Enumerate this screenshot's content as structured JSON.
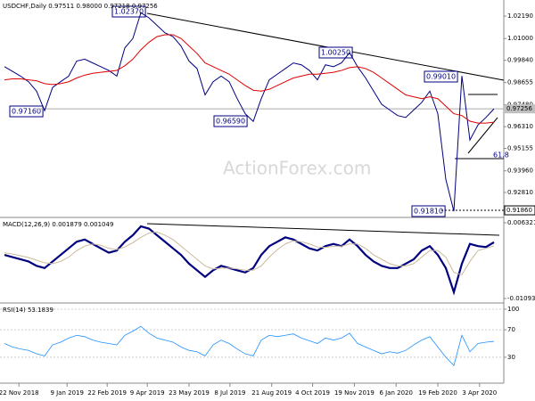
{
  "watermark": "ActionForex.com",
  "chart_data": [
    {
      "type": "line",
      "title": "USDCHF,Daily 0.97511 0.98000 0.97218 0.97256",
      "series": [
        {
          "name": "Close",
          "color": "#000080",
          "width": 1,
          "values": [
            0.995,
            0.9925,
            0.99,
            0.987,
            0.982,
            0.9716,
            0.984,
            0.987,
            0.99,
            0.998,
            0.999,
            0.997,
            0.995,
            0.993,
            0.99,
            1.005,
            1.01,
            1.0237,
            1.021,
            1.017,
            1.013,
            1.011,
            1.006,
            0.998,
            0.994,
            0.98,
            0.987,
            0.99,
            0.987,
            0.978,
            0.97,
            0.9659,
            0.978,
            0.988,
            0.991,
            0.994,
            0.997,
            0.996,
            0.993,
            0.988,
            0.996,
            0.995,
            0.997,
            1.0025,
            0.995,
            0.989,
            0.982,
            0.975,
            0.972,
            0.969,
            0.968,
            0.972,
            0.976,
            0.982,
            0.97,
            0.935,
            0.9181,
            0.9901,
            0.956,
            0.964,
            0.968,
            0.9726
          ]
        },
        {
          "name": "MA",
          "color": "#e00000",
          "width": 1,
          "values": [
            0.988,
            0.9885,
            0.9885,
            0.988,
            0.9875,
            0.986,
            0.9855,
            0.986,
            0.987,
            0.989,
            0.9905,
            0.9915,
            0.992,
            0.9925,
            0.993,
            0.9955,
            0.999,
            1.004,
            1.008,
            1.011,
            1.012,
            1.012,
            1.01,
            1.006,
            1.002,
            0.997,
            0.995,
            0.993,
            0.991,
            0.988,
            0.985,
            0.9825,
            0.982,
            0.983,
            0.985,
            0.987,
            0.989,
            0.99,
            0.991,
            0.991,
            0.9915,
            0.992,
            0.993,
            0.9945,
            0.995,
            0.994,
            0.992,
            0.989,
            0.986,
            0.983,
            0.98,
            0.979,
            0.978,
            0.979,
            0.978,
            0.974,
            0.97,
            0.969,
            0.966,
            0.965,
            0.965,
            0.9655
          ]
        }
      ],
      "ylim": [
        0.9153,
        1.0281
      ],
      "yticks": [
        {
          "value": 1.0219,
          "label": "1.02190"
        },
        {
          "value": 1.01,
          "label": "1.01000"
        },
        {
          "value": 0.9984,
          "label": "0.99840"
        },
        {
          "value": 0.98655,
          "label": "0.98655"
        },
        {
          "value": 0.9748,
          "label": "0.97480"
        },
        {
          "value": 0.9631,
          "label": "0.96310"
        },
        {
          "value": 0.95155,
          "label": "0.95155"
        },
        {
          "value": 0.9396,
          "label": "0.93960"
        },
        {
          "value": 0.9281,
          "label": "0.92810"
        }
      ],
      "last_price": {
        "value": 0.97256,
        "label": "0.97256"
      },
      "level": {
        "value": 0.9186,
        "label": "0.91860"
      },
      "annotations": [
        "1.02370",
        "0.97160",
        "0.96590",
        "1.00250",
        "0.99010",
        "0.91810",
        "61.8"
      ]
    },
    {
      "type": "line",
      "title": "MACD(12,26,9) 0.001879 0.001049",
      "series": [
        {
          "name": "MACD",
          "color": "#000080",
          "width": 2.2,
          "values": [
            -0.001,
            -0.0015,
            -0.002,
            -0.0025,
            -0.0035,
            -0.004,
            -0.0025,
            -0.001,
            0.0005,
            0.002,
            0.0025,
            0.0015,
            0.0005,
            -0.0005,
            0,
            0.002,
            0.0035,
            0.0055,
            0.005,
            0.0035,
            0.002,
            0.0005,
            -0.001,
            -0.003,
            -0.0045,
            -0.006,
            -0.0045,
            -0.0035,
            -0.004,
            -0.0045,
            -0.005,
            -0.004,
            -0.001,
            0.001,
            0.002,
            0.003,
            0.0025,
            0.0015,
            0.0005,
            0,
            0.001,
            0.0015,
            0.001,
            0.0025,
            0.001,
            -0.001,
            -0.0025,
            -0.0035,
            -0.004,
            -0.004,
            -0.003,
            -0.002,
            0,
            0.001,
            -0.001,
            -0.004,
            -0.0095,
            -0.003,
            0.0015,
            0.001,
            0.0008,
            0.001879
          ]
        },
        {
          "name": "Signal",
          "color": "#c9b99c",
          "width": 1,
          "values": [
            -0.0005,
            -0.0008,
            -0.0012,
            -0.0016,
            -0.0022,
            -0.0028,
            -0.003,
            -0.0025,
            -0.0015,
            0,
            0.001,
            0.0015,
            0.0012,
            0.0005,
            0.0002,
            0.0008,
            0.0018,
            0.003,
            0.004,
            0.0042,
            0.0035,
            0.0025,
            0.001,
            -0.0005,
            -0.002,
            -0.0035,
            -0.0042,
            -0.004,
            -0.004,
            -0.0042,
            -0.0045,
            -0.0045,
            -0.0035,
            -0.0015,
            0.0002,
            0.0015,
            0.0022,
            0.002,
            0.0015,
            0.0008,
            0.0007,
            0.001,
            0.001,
            0.0015,
            0.0015,
            0.0005,
            -0.001,
            -0.002,
            -0.003,
            -0.0035,
            -0.0035,
            -0.003,
            -0.0015,
            0,
            0,
            -0.0015,
            -0.005,
            -0.0055,
            -0.0025,
            0,
            0.0005,
            0.001049
          ]
        }
      ],
      "ylim": [
        -0.010939,
        0.006321
      ],
      "yticks": [
        0.006321,
        -0.010939
      ]
    },
    {
      "type": "line",
      "title": "RSI(14) 53.1839",
      "series": [
        {
          "name": "RSI",
          "color": "#1e90ff",
          "width": 0.8,
          "values": [
            50,
            45,
            42,
            40,
            35,
            32,
            48,
            52,
            58,
            62,
            60,
            55,
            52,
            50,
            48,
            62,
            68,
            75,
            65,
            58,
            55,
            52,
            45,
            40,
            38,
            32,
            48,
            55,
            50,
            42,
            35,
            32,
            55,
            62,
            60,
            62,
            64,
            58,
            54,
            50,
            58,
            55,
            58,
            65,
            50,
            45,
            40,
            35,
            38,
            36,
            40,
            48,
            55,
            60,
            45,
            30,
            18,
            62,
            38,
            50,
            52,
            53.1839
          ]
        }
      ],
      "ylim": [
        0,
        100
      ],
      "yticks": [
        100,
        70,
        30
      ],
      "xticks": [
        {
          "value": 1.8,
          "label": "22 Nov 2018"
        },
        {
          "value": 7.8,
          "label": "9 Jan 2019"
        },
        {
          "value": 12.8,
          "label": "22 Feb 2019"
        },
        {
          "value": 17.8,
          "label": "9 Apr 2019"
        },
        {
          "value": 23,
          "label": "23 May 2019"
        },
        {
          "value": 28.1,
          "label": "8 Jul 2019"
        },
        {
          "value": 33.3,
          "label": "21 Aug 2019"
        },
        {
          "value": 38.4,
          "label": "4 Oct 2019"
        },
        {
          "value": 43.6,
          "label": "19 Nov 2019"
        },
        {
          "value": 48.8,
          "label": "6 Jan 2020"
        },
        {
          "value": 54,
          "label": "19 Feb 2020"
        },
        {
          "value": 59.2,
          "label": "3 Apr 2020"
        }
      ]
    }
  ]
}
